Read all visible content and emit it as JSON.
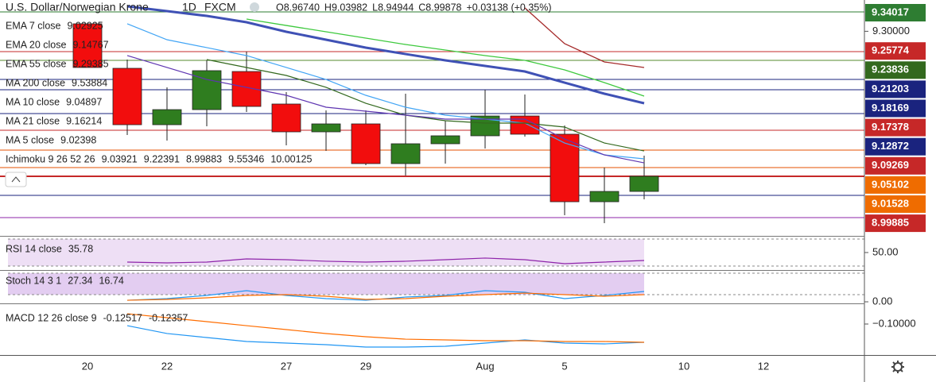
{
  "chart_data": {
    "type": "candlestick",
    "title": "U.S. Dollar/Norwegian Krone",
    "interval": "1D",
    "source": "FXCM",
    "ohlc_text": [
      "O8.96740",
      "H9.03982",
      "L8.94944",
      "C8.99878",
      "+0.03138 (+0.35%)"
    ],
    "categories": [
      "20",
      null,
      "22",
      null,
      null,
      "27",
      null,
      "29",
      null,
      null,
      "Aug",
      null,
      "5",
      null,
      null,
      "10",
      null,
      "12"
    ],
    "open": [
      9.3155,
      9.2232,
      9.1062,
      9.1375,
      9.2166,
      9.1491,
      9.0914,
      9.1079,
      9.0255,
      9.0667,
      9.0832,
      9.1243,
      9.0865,
      8.9464,
      8.9678,
      null,
      null,
      null
    ],
    "high": [
      9.3155,
      9.2413,
      9.1837,
      9.2397,
      9.2578,
      9.1738,
      9.1359,
      9.1359,
      9.1705,
      9.1145,
      9.1787,
      9.1688,
      9.1046,
      9.0173,
      9.042,
      null,
      null,
      null
    ],
    "low": [
      9.2249,
      9.0848,
      9.0733,
      9.1029,
      9.1326,
      9.0634,
      9.0519,
      9.0222,
      9.0008,
      9.0255,
      9.0568,
      9.0815,
      8.9184,
      8.9019,
      8.9514,
      null,
      null,
      null
    ],
    "close": [
      9.2249,
      9.1062,
      9.1375,
      9.2183,
      9.1441,
      9.0914,
      9.1079,
      9.0255,
      9.0667,
      9.0832,
      9.1243,
      9.0865,
      8.9464,
      8.9678,
      8.9992,
      null,
      null,
      null
    ],
    "up_color": "#2f7d1f",
    "down_color": "#f20d0d",
    "ylim": [
      8.8756,
      9.3649
    ],
    "yticks": [
      {
        "value": 9.3,
        "label": "9.30000"
      }
    ],
    "levels": [
      {
        "value": 9.3402,
        "color": "#2e7d32"
      },
      {
        "value": 9.2578,
        "color": "#c62828"
      },
      {
        "value": 9.2397,
        "color": "#558b2f"
      },
      {
        "value": 9.2001,
        "color": "#1a237e"
      },
      {
        "value": 9.1787,
        "color": "#1a237e"
      },
      {
        "value": 9.1293,
        "color": "#1a237e"
      },
      {
        "value": 9.0947,
        "color": "#c62828"
      },
      {
        "value": 9.0535,
        "color": "#e65100"
      },
      {
        "value": 9.0173,
        "color": "#e65100"
      },
      {
        "value": 8.9992,
        "color": "#c62828"
      },
      {
        "value": 8.9596,
        "color": "#1a237e"
      },
      {
        "value": 8.9135,
        "color": "#8e24aa"
      }
    ],
    "overlays": [
      {
        "color": "#3f51b5",
        "width": 3,
        "values": [
          null,
          9.3517,
          9.3418,
          9.3319,
          9.3188,
          9.299,
          9.2825,
          9.2661,
          9.2528,
          9.2397,
          9.2281,
          9.2166,
          9.1935,
          9.1705,
          9.1507,
          null,
          null,
          null
        ]
      },
      {
        "color": "#3ec93e",
        "width": 1.3,
        "values": [
          null,
          null,
          null,
          null,
          9.3253,
          9.3121,
          9.299,
          9.2858,
          9.2726,
          9.2611,
          9.2496,
          9.2397,
          9.2199,
          9.1935,
          9.1655,
          null,
          null,
          null
        ]
      },
      {
        "color": "#a52a2a",
        "width": 1.3,
        "values": [
          null,
          null,
          null,
          null,
          null,
          null,
          null,
          null,
          null,
          null,
          null,
          9.3484,
          9.2743,
          9.2364,
          9.2249,
          null,
          null,
          null
        ]
      },
      {
        "color": "#42a5f5",
        "width": 1.2,
        "values": [
          null,
          9.3155,
          9.2825,
          9.2661,
          9.2496,
          9.2249,
          9.2001,
          9.1672,
          9.1425,
          9.126,
          9.1178,
          9.1095,
          9.0683,
          9.0436,
          9.0354,
          null,
          null,
          null
        ]
      },
      {
        "color": "#33691e",
        "width": 1.2,
        "values": [
          null,
          null,
          null,
          9.2413,
          9.2249,
          9.2084,
          9.1837,
          9.1507,
          9.126,
          9.1145,
          9.1095,
          9.1095,
          9.1013,
          9.0683,
          9.0518,
          null,
          null,
          null
        ]
      },
      {
        "color": "#5e35b1",
        "width": 1.2,
        "values": [
          null,
          9.2496,
          9.2249,
          9.2001,
          9.1837,
          9.1672,
          9.1425,
          9.1343,
          9.126,
          9.1178,
          9.1178,
          9.1178,
          9.0766,
          9.0436,
          9.0271,
          null,
          null,
          null
        ]
      }
    ],
    "indicators": [
      {
        "name": "EMA 7 close",
        "values": [
          9.02925
        ],
        "colors": [
          "#3d8fd9"
        ]
      },
      {
        "name": "EMA 20 close",
        "values": [
          9.14767
        ],
        "colors": [
          "#b71c1c"
        ]
      },
      {
        "name": "EMA 55 close",
        "values": [
          9.29385
        ],
        "colors": [
          "#f57c00"
        ]
      },
      {
        "name": "MA 200 close",
        "values": [
          9.53884
        ],
        "colors": [
          "#d32f2f"
        ]
      },
      {
        "name": "MA 10 close",
        "values": [
          9.04897
        ],
        "colors": [
          "#1b5e20"
        ]
      },
      {
        "name": "MA 21 close",
        "values": [
          9.16214
        ],
        "colors": [
          "#2e7d32"
        ]
      },
      {
        "name": "MA 5 close",
        "values": [
          9.02398
        ],
        "colors": [
          "#283593"
        ]
      },
      {
        "name": "Ichimoku 9 26 52 26",
        "values": [
          9.03921,
          9.22391,
          8.99883,
          9.55346,
          10.00125
        ],
        "colors": [
          "#2196f3",
          "#b71c1c",
          "#33691e",
          "#1b5e20",
          "#e53935"
        ]
      }
    ],
    "price_tags": [
      {
        "value": 9.34017,
        "color": "#2e7d32"
      },
      {
        "value": 9.25774,
        "color": "#c62828"
      },
      {
        "value": 9.23836,
        "color": "#33691e"
      },
      {
        "value": 9.21203,
        "color": "#1a237e"
      },
      {
        "value": 9.18169,
        "color": "#1a237e"
      },
      {
        "value": 9.17378,
        "color": "#c62828"
      },
      {
        "value": 9.12872,
        "color": "#1a237e"
      },
      {
        "value": 9.09269,
        "color": "#c62828"
      },
      {
        "value": 9.05102,
        "color": "#ef6c00"
      },
      {
        "value": 9.01528,
        "color": "#ef6c00"
      },
      {
        "value": 8.99885,
        "color": "#c62828"
      }
    ],
    "panes": [
      {
        "name": "RSI 14 close",
        "legend_values": [
          35.78
        ],
        "colors": [
          "#7b1fa2"
        ],
        "ylim": [
          24.1,
          73.5
        ],
        "yticks": [
          {
            "value": 50,
            "label": "50.00"
          }
        ],
        "band": [
          30,
          70
        ],
        "band_color": "#ead7f3",
        "lines": [
          {
            "color": "#8e24aa",
            "values": [
              null,
              35.9,
              34.7,
              35.9,
              40.6,
              39.4,
              37.1,
              35.9,
              37.1,
              39.4,
              41.8,
              39.4,
              33.5,
              35.9,
              38.2,
              null,
              null,
              null
            ]
          }
        ]
      },
      {
        "name": "Stoch 14 3 1",
        "legend_values": [
          27.34,
          16.74
        ],
        "colors": [
          "#2196f3",
          "#ff6d00"
        ],
        "ylim": [
          -4.4,
          86.7
        ],
        "yticks": [
          {
            "value": 0,
            "label": "0.00"
          }
        ],
        "band": [
          20,
          80
        ],
        "band_color": "#dcc0ee",
        "lines": [
          {
            "color": "#2196f3",
            "values": [
              null,
              4.4,
              8.9,
              17.8,
              31.1,
              17.8,
              8.9,
              4.4,
              13.3,
              17.8,
              31.1,
              26.7,
              8.9,
              17.8,
              28.9,
              null,
              null,
              null
            ]
          },
          {
            "color": "#ff6d00",
            "values": [
              null,
              4.4,
              6.7,
              11.1,
              17.8,
              20.0,
              15.6,
              6.7,
              8.9,
              15.6,
              20.0,
              24.4,
              20.0,
              15.6,
              20.0,
              null,
              null,
              null
            ]
          }
        ]
      },
      {
        "name": "MACD 12 26 close 9",
        "legend_values": [
          -0.12517,
          -0.12357
        ],
        "colors": [
          "#2196f3",
          "#ff6d00"
        ],
        "ylim": [
          -0.1424,
          -0.0728
        ],
        "yticks": [
          {
            "value": -0.1,
            "label": "−0.10000"
          }
        ],
        "lines": [
          {
            "color": "#2196f3",
            "values": [
              null,
              -0.1022,
              -0.113,
              -0.1185,
              -0.1239,
              -0.1261,
              -0.1283,
              -0.1315,
              -0.1315,
              -0.1304,
              -0.1261,
              -0.1217,
              -0.1261,
              -0.1272,
              -0.125,
              null,
              null,
              null
            ]
          },
          {
            "color": "#ff6d00",
            "values": [
              null,
              -0.0859,
              -0.0913,
              -0.0967,
              -0.1022,
              -0.1076,
              -0.113,
              -0.1174,
              -0.1207,
              -0.1217,
              -0.1228,
              -0.1228,
              -0.1239,
              -0.1239,
              -0.125,
              null,
              null,
              null
            ]
          }
        ]
      }
    ]
  }
}
